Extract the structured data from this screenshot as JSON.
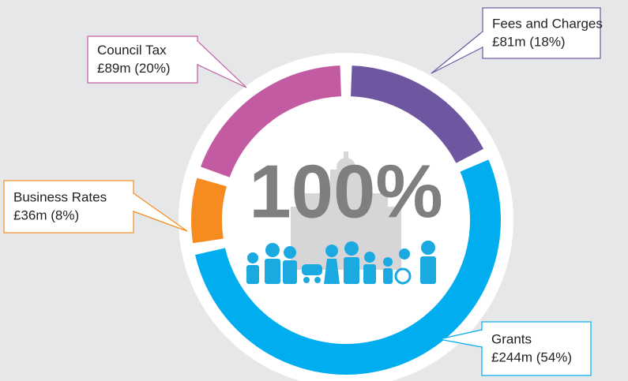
{
  "chart_data": {
    "type": "donut",
    "center_label": "100%",
    "categories": [
      "Fees and Charges",
      "Grants",
      "Business Rates",
      "Council Tax"
    ],
    "values": [
      18,
      54,
      8,
      20
    ],
    "value_labels": [
      "£81m (18%)",
      "£244m (54%)",
      "£36m (8%)",
      "£89m (20%)"
    ],
    "colors": [
      "#6f56a1",
      "#00aeef",
      "#f68b1f",
      "#c25ba2"
    ]
  }
}
